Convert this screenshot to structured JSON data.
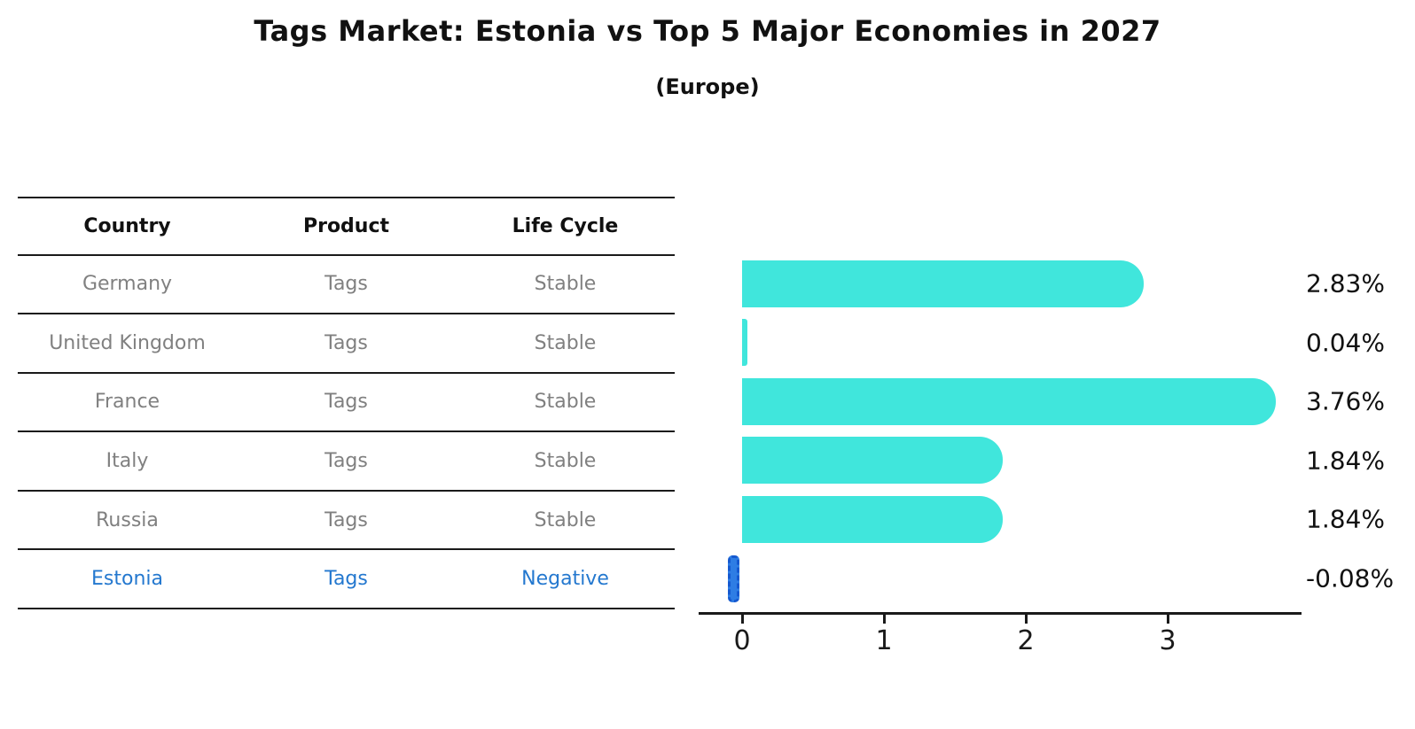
{
  "title": "Tags Market: Estonia vs Top 5 Major Economies in 2027",
  "subtitle": "(Europe)",
  "table": {
    "headers": [
      "Country",
      "Product",
      "Life Cycle"
    ],
    "rows": [
      {
        "country": "Germany",
        "product": "Tags",
        "life_cycle": "Stable",
        "highlight": false
      },
      {
        "country": "United Kingdom",
        "product": "Tags",
        "life_cycle": "Stable",
        "highlight": false
      },
      {
        "country": "France",
        "product": "Tags",
        "life_cycle": "Stable",
        "highlight": false
      },
      {
        "country": "Italy",
        "product": "Tags",
        "life_cycle": "Stable",
        "highlight": false
      },
      {
        "country": "Russia",
        "product": "Tags",
        "life_cycle": "Stable",
        "highlight": false
      },
      {
        "country": "Estonia",
        "product": "Tags",
        "life_cycle": "Negative",
        "highlight": true
      }
    ]
  },
  "chart_data": {
    "type": "bar",
    "orientation": "horizontal",
    "title": "Tags Market: Estonia vs Top 5 Major Economies in 2027",
    "subtitle": "(Europe)",
    "categories": [
      "Germany",
      "United Kingdom",
      "France",
      "Italy",
      "Russia",
      "Estonia"
    ],
    "values": [
      2.83,
      0.04,
      3.76,
      1.84,
      1.84,
      -0.08
    ],
    "labels": [
      "2.83%",
      "0.04%",
      "3.76%",
      "1.84%",
      "1.84%",
      "-0.08%"
    ],
    "x_ticks": [
      0,
      1,
      2,
      3
    ],
    "x_tick_labels": [
      "0",
      "1",
      "2",
      "3"
    ],
    "xlim": [
      -0.31,
      3.94
    ],
    "grid": false,
    "legend": "none",
    "highlight_index": 5,
    "bar_color": "#40E6DC",
    "highlight_bar_color": "#2E7DE4",
    "highlight_bar_edge_color": "#1559CF"
  },
  "colors": {
    "bar": "#40E6DC",
    "highlight_bar_fill": "#2E7DE4",
    "highlight_bar_edge": "#1559CF",
    "table_row_text": "#808080",
    "highlight_row_text": "#2478CF",
    "ink": "#111111",
    "line": "#1a1a1a"
  }
}
